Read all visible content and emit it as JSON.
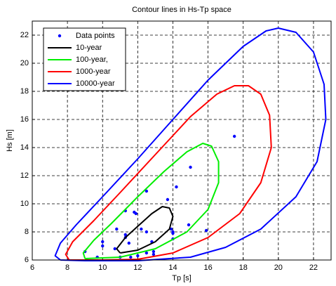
{
  "chart_data": {
    "type": "line",
    "title": "Contour lines in Hs-Tp space",
    "x_label": "Tp [s]",
    "y_label": "Hs [m]",
    "xlim": [
      6,
      23
    ],
    "ylim": [
      6,
      23
    ],
    "xticks": [
      6,
      8,
      10,
      12,
      14,
      16,
      18,
      20,
      22
    ],
    "yticks": [
      6,
      8,
      10,
      12,
      14,
      16,
      18,
      20,
      22
    ],
    "grid": true,
    "legend": "top-left",
    "series": [
      {
        "name": "Data points",
        "type": "scatter",
        "color": "#0000ff",
        "x": [
          9.0,
          9.7,
          10.0,
          10.0,
          10.7,
          10.8,
          11.3,
          11.3,
          11.3,
          11.8,
          11.9,
          11.5,
          11.6,
          12.2,
          12.5,
          12.5,
          12.8,
          12.9,
          12.5,
          12.9,
          12.0,
          13.7,
          13.9,
          14.0,
          14.0,
          14.2,
          14.0,
          14.9,
          15.0,
          15.9,
          17.5,
          11.0
        ],
        "values": [
          6.6,
          6.2,
          7.3,
          7.0,
          6.8,
          8.2,
          9.5,
          7.8,
          7.6,
          9.4,
          9.3,
          7.2,
          6.2,
          8.2,
          8.0,
          10.9,
          7.3,
          6.6,
          6.5,
          6.4,
          6.3,
          10.3,
          8.2,
          8.0,
          7.9,
          11.2,
          7.5,
          8.5,
          12.6,
          8.1,
          14.8,
          6.2
        ]
      },
      {
        "name": "10-year",
        "type": "line",
        "color": "#000000",
        "x": [
          11.0,
          10.8,
          11.3,
          12.0,
          12.8,
          13.4,
          13.8,
          14.0,
          13.8,
          13.0,
          12.0,
          11.0
        ],
        "values": [
          6.5,
          6.8,
          7.6,
          8.4,
          9.3,
          9.8,
          9.7,
          9.1,
          8.2,
          7.3,
          6.7,
          6.5
        ]
      },
      {
        "name": "100-year,",
        "type": "line",
        "color": "#00ee00",
        "x": [
          9.0,
          8.9,
          9.5,
          10.5,
          12.0,
          13.5,
          14.8,
          15.7,
          16.2,
          16.6,
          16.6,
          16.0,
          14.8,
          13.0,
          11.0,
          9.0
        ],
        "values": [
          6.1,
          6.5,
          7.4,
          8.6,
          10.5,
          12.3,
          13.7,
          14.3,
          14.1,
          13.0,
          11.5,
          9.6,
          8.0,
          6.8,
          6.2,
          6.1
        ]
      },
      {
        "name": "1000-year",
        "type": "line",
        "color": "#ff0000",
        "x": [
          8.1,
          7.9,
          8.3,
          9.5,
          11.0,
          13.0,
          15.0,
          16.5,
          17.5,
          18.3,
          19.0,
          19.5,
          19.6,
          19.0,
          17.8,
          16.0,
          14.0,
          12.0,
          10.0,
          8.1
        ],
        "values": [
          6.0,
          6.4,
          7.3,
          8.8,
          10.8,
          13.5,
          16.2,
          17.8,
          18.4,
          18.4,
          17.8,
          16.3,
          14.0,
          11.5,
          9.3,
          7.6,
          6.5,
          6.05,
          6.0,
          6.0
        ]
      },
      {
        "name": "10000-year",
        "type": "line",
        "color": "#0000ff",
        "x": [
          7.6,
          7.3,
          7.6,
          8.5,
          10.0,
          12.0,
          14.0,
          16.0,
          18.0,
          19.3,
          20.0,
          21.0,
          22.0,
          22.6,
          22.7,
          22.2,
          21.0,
          19.0,
          17.0,
          15.0,
          12.0,
          9.0,
          7.6
        ],
        "values": [
          6.0,
          6.3,
          7.2,
          8.5,
          10.5,
          13.2,
          16.0,
          18.8,
          21.2,
          22.3,
          22.5,
          22.2,
          20.8,
          18.5,
          16.0,
          13.0,
          10.5,
          8.2,
          6.9,
          6.2,
          5.95,
          5.95,
          6.0
        ]
      }
    ]
  }
}
